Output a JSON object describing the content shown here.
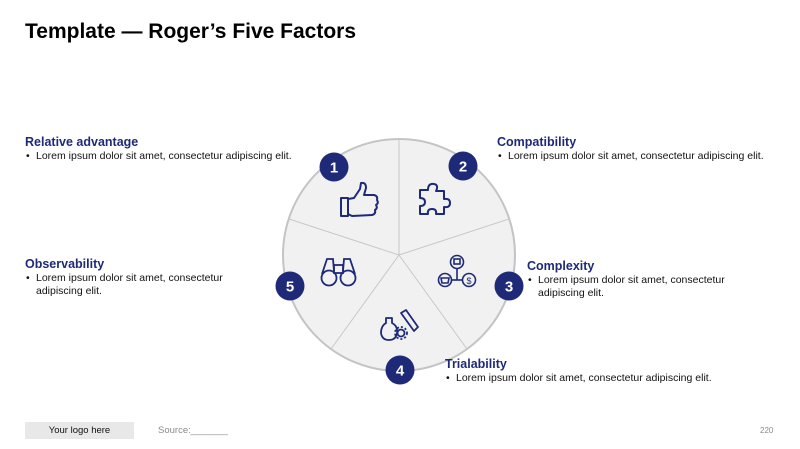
{
  "title": "Template — Roger’s Five Factors",
  "factors": [
    {
      "number": "1",
      "heading": "Relative advantage",
      "text": "Lorem ipsum dolor sit amet, consectetur adipiscing elit.",
      "icon": "thumbs-up-icon"
    },
    {
      "number": "2",
      "heading": "Compatibility",
      "text": "Lorem ipsum dolor sit amet, consectetur adipiscing elit.",
      "icon": "puzzle-piece-icon"
    },
    {
      "number": "3",
      "heading": "Complexity",
      "text": "Lorem ipsum dolor sit amet, consectetur adipiscing elit.",
      "icon": "network-icon"
    },
    {
      "number": "4",
      "heading": "Trialability",
      "text": "Lorem ipsum dolor sit amet, consectetur adipiscing elit.",
      "icon": "lab-flask-icon"
    },
    {
      "number": "5",
      "heading": "Observability",
      "text": "Lorem ipsum dolor sit amet, consectetur adipiscing elit.",
      "icon": "binoculars-icon"
    }
  ],
  "footer": {
    "logo": "Your logo here",
    "source": "Source:_______",
    "page": "220"
  },
  "colors": {
    "accent": "#1e2a78",
    "segment_fill": "#f1f1f1",
    "segment_stroke": "#c8c8c8"
  }
}
